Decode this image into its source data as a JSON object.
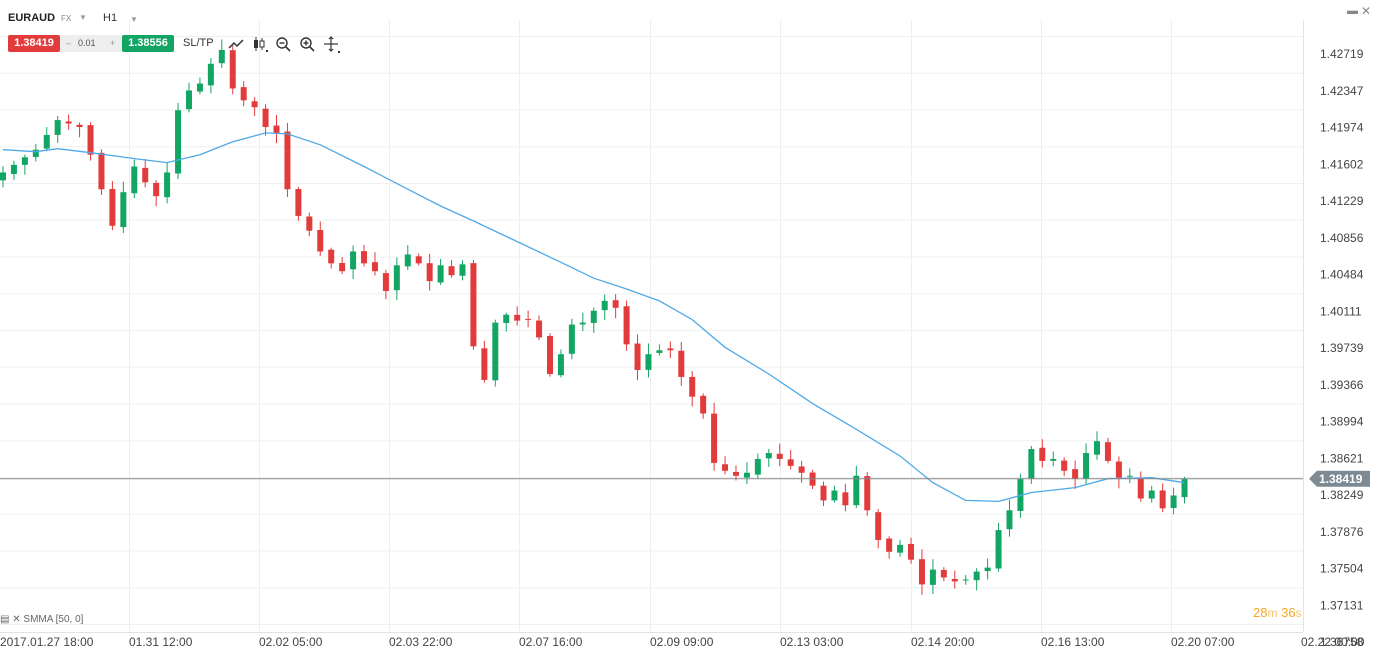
{
  "header": {
    "symbol": "EURAUD",
    "market": "FX",
    "timeframe": "H1",
    "sell_price": "1.38419",
    "spread_minus": "–",
    "spread": "0.01",
    "spread_plus": "+",
    "buy_price": "1.38556",
    "sltp_label": "SL/TP"
  },
  "indicator": {
    "label": "SMMA [50, 0]"
  },
  "timer": {
    "minutes": "28",
    "m_unit": "m",
    "seconds": "36",
    "s_unit": "s"
  },
  "colors": {
    "up": "#12a564",
    "down": "#e23b3b",
    "ma": "#4fa9e8",
    "current_line": "#888888",
    "timer": "#f5a623"
  },
  "icons": [
    "trend-line-icon",
    "candle-type-icon",
    "zoom-out-icon",
    "zoom-in-icon",
    "crosshair-icon",
    "minimize-icon",
    "close-icon"
  ],
  "chart_data": {
    "type": "candlestick",
    "y_ticks": [
      "1.42719",
      "1.42347",
      "1.41974",
      "1.41602",
      "1.41229",
      "1.40856",
      "1.40484",
      "1.40111",
      "1.39739",
      "1.39366",
      "1.38994",
      "1.38621",
      "1.38249",
      "1.37876",
      "1.37504",
      "1.37131",
      "1.36758"
    ],
    "ylim": [
      1.36758,
      1.4309
    ],
    "x_ticks": [
      "2017.01.27 18:00",
      "01.31 12:00",
      "02.02 05:00",
      "02.03 22:00",
      "02.07 16:00",
      "02.09 09:00",
      "02.13 03:00",
      "02.14 20:00",
      "02.16 13:00",
      "02.20 07:00",
      "02.22 00:00"
    ],
    "current_price": 1.38419,
    "current_price_label": "1.38419",
    "close_path": [
      [
        0,
        1.4152
      ],
      [
        3,
        1.4175
      ],
      [
        5,
        1.4205
      ],
      [
        7,
        1.4198
      ],
      [
        8,
        1.417
      ],
      [
        9,
        1.4135
      ],
      [
        10,
        1.4098
      ],
      [
        11,
        1.4132
      ],
      [
        12,
        1.4158
      ],
      [
        13,
        1.4142
      ],
      [
        14,
        1.4128
      ],
      [
        15,
        1.4152
      ],
      [
        16,
        1.4215
      ],
      [
        17,
        1.4235
      ],
      [
        18,
        1.4242
      ],
      [
        19,
        1.4262
      ],
      [
        20,
        1.4276
      ],
      [
        21,
        1.4237
      ],
      [
        22,
        1.4225
      ],
      [
        23,
        1.4218
      ],
      [
        24,
        1.4198
      ],
      [
        25,
        1.4192
      ],
      [
        26,
        1.4135
      ],
      [
        27,
        1.4108
      ],
      [
        28,
        1.4093
      ],
      [
        29,
        1.4072
      ],
      [
        30,
        1.406
      ],
      [
        31,
        1.4052
      ],
      [
        32,
        1.4072
      ],
      [
        33,
        1.406
      ],
      [
        34,
        1.4052
      ],
      [
        35,
        1.4032
      ],
      [
        36,
        1.4058
      ],
      [
        37,
        1.4069
      ],
      [
        38,
        1.406
      ],
      [
        39,
        1.4042
      ],
      [
        40,
        1.4058
      ],
      [
        41,
        1.4048
      ],
      [
        42,
        1.4059
      ],
      [
        43,
        1.3976
      ],
      [
        44,
        1.3942
      ],
      [
        45,
        1.4
      ],
      [
        46,
        1.4008
      ],
      [
        47,
        1.4002
      ],
      [
        48,
        1.4003
      ],
      [
        49,
        1.3985
      ],
      [
        50,
        1.3948
      ],
      [
        51,
        1.3968
      ],
      [
        52,
        1.3998
      ],
      [
        53,
        1.4
      ],
      [
        54,
        1.4012
      ],
      [
        55,
        1.4022
      ],
      [
        56,
        1.4015
      ],
      [
        57,
        1.3978
      ],
      [
        58,
        1.3952
      ],
      [
        59,
        1.3968
      ],
      [
        60,
        1.3972
      ],
      [
        61,
        1.3972
      ],
      [
        62,
        1.3945
      ],
      [
        63,
        1.3925
      ],
      [
        64,
        1.3908
      ],
      [
        65,
        1.3858
      ],
      [
        66,
        1.385
      ],
      [
        67,
        1.3845
      ],
      [
        68,
        1.3848
      ],
      [
        69,
        1.3862
      ],
      [
        70,
        1.3868
      ],
      [
        71,
        1.3862
      ],
      [
        72,
        1.3855
      ],
      [
        73,
        1.3848
      ],
      [
        74,
        1.3835
      ],
      [
        75,
        1.382
      ],
      [
        76,
        1.383
      ],
      [
        77,
        1.3815
      ],
      [
        78,
        1.3845
      ],
      [
        79,
        1.381
      ],
      [
        80,
        1.378
      ],
      [
        81,
        1.3768
      ],
      [
        82,
        1.3775
      ],
      [
        83,
        1.376
      ],
      [
        84,
        1.3735
      ],
      [
        85,
        1.375
      ],
      [
        86,
        1.3742
      ],
      [
        87,
        1.3738
      ],
      [
        88,
        1.374
      ],
      [
        89,
        1.3748
      ],
      [
        90,
        1.3752
      ],
      [
        91,
        1.379
      ],
      [
        92,
        1.381
      ],
      [
        93,
        1.3842
      ],
      [
        94,
        1.3872
      ],
      [
        95,
        1.386
      ],
      [
        96,
        1.3862
      ],
      [
        97,
        1.385
      ],
      [
        98,
        1.3842
      ],
      [
        99,
        1.3868
      ],
      [
        100,
        1.388
      ],
      [
        101,
        1.386
      ],
      [
        102,
        1.3843
      ],
      [
        103,
        1.3845
      ],
      [
        104,
        1.3822
      ],
      [
        105,
        1.383
      ],
      [
        106,
        1.3812
      ],
      [
        107,
        1.3825
      ],
      [
        108,
        1.3842
      ]
    ],
    "ma_path": [
      [
        0,
        1.4175
      ],
      [
        3,
        1.4173
      ],
      [
        5,
        1.4176
      ],
      [
        8,
        1.4172
      ],
      [
        12,
        1.4166
      ],
      [
        15,
        1.4162
      ],
      [
        18,
        1.417
      ],
      [
        21,
        1.4183
      ],
      [
        24,
        1.4192
      ],
      [
        26,
        1.4191
      ],
      [
        29,
        1.418
      ],
      [
        33,
        1.4158
      ],
      [
        37,
        1.4135
      ],
      [
        40,
        1.4118
      ],
      [
        43,
        1.4103
      ],
      [
        47,
        1.4082
      ],
      [
        51,
        1.4061
      ],
      [
        54,
        1.4045
      ],
      [
        57,
        1.4034
      ],
      [
        60,
        1.4022
      ],
      [
        63,
        1.4003
      ],
      [
        66,
        1.3975
      ],
      [
        70,
        1.3948
      ],
      [
        74,
        1.3918
      ],
      [
        78,
        1.3892
      ],
      [
        82,
        1.3865
      ],
      [
        85,
        1.3838
      ],
      [
        88,
        1.382
      ],
      [
        91,
        1.3819
      ],
      [
        94,
        1.3828
      ],
      [
        98,
        1.3833
      ],
      [
        101,
        1.3842
      ],
      [
        105,
        1.3843
      ],
      [
        108,
        1.3838
      ]
    ]
  }
}
